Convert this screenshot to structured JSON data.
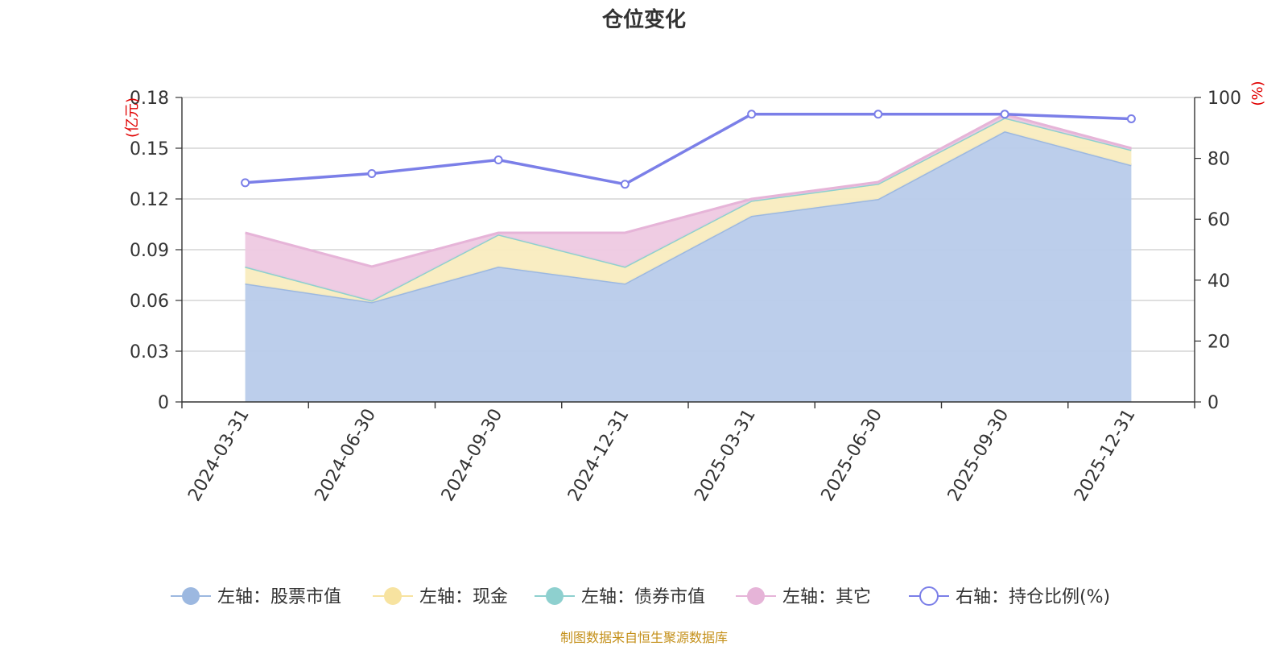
{
  "chart_data": {
    "type": "area",
    "title": "仓位变化",
    "categories": [
      "2024-03-31",
      "2024-06-30",
      "2024-09-30",
      "2024-12-31",
      "2025-03-31",
      "2025-06-30",
      "2025-09-30",
      "2025-12-31"
    ],
    "left_axis": {
      "unit_label": "(亿元)",
      "ylim": [
        0,
        0.18
      ],
      "ticks": [
        "0",
        "0.03",
        "0.06",
        "0.09",
        "0.12",
        "0.15",
        "0.18"
      ]
    },
    "right_axis": {
      "unit_label": "(%)",
      "ylim": [
        0,
        100
      ],
      "ticks": [
        "0",
        "20",
        "40",
        "60",
        "80",
        "100"
      ]
    },
    "stacked_series": [
      {
        "name": "左轴：股票市值",
        "axis": "left",
        "color": "#9cb8e0",
        "fill": "#b8cbea",
        "values": [
          0.07,
          0.059,
          0.08,
          0.07,
          0.11,
          0.12,
          0.16,
          0.14
        ]
      },
      {
        "name": "左轴：现金",
        "axis": "left",
        "color": "#f7e3a0",
        "fill": "#f9ecbf",
        "values": [
          0.01,
          0.001,
          0.019,
          0.01,
          0.009,
          0.009,
          0.008,
          0.009
        ]
      },
      {
        "name": "左轴：债券市值",
        "axis": "left",
        "color": "#8ed0cf",
        "fill": "#b8e2e1",
        "values": [
          0,
          0,
          0,
          0,
          0,
          0,
          0,
          0
        ]
      },
      {
        "name": "左轴：其它",
        "axis": "left",
        "color": "#e6b4d8",
        "fill": "#eec9e2",
        "values": [
          0.02,
          0.02,
          0.001,
          0.02,
          0.001,
          0.001,
          0.002,
          0.001
        ]
      }
    ],
    "line_series": {
      "name": "右轴：持仓比例(%)",
      "axis": "right",
      "color": "#7b7fe8",
      "values": [
        72,
        75,
        79.5,
        71.5,
        94.5,
        94.5,
        94.5,
        93
      ]
    },
    "legend_position": "bottom",
    "grid": true
  },
  "source_note": "制图数据来自恒生聚源数据库"
}
